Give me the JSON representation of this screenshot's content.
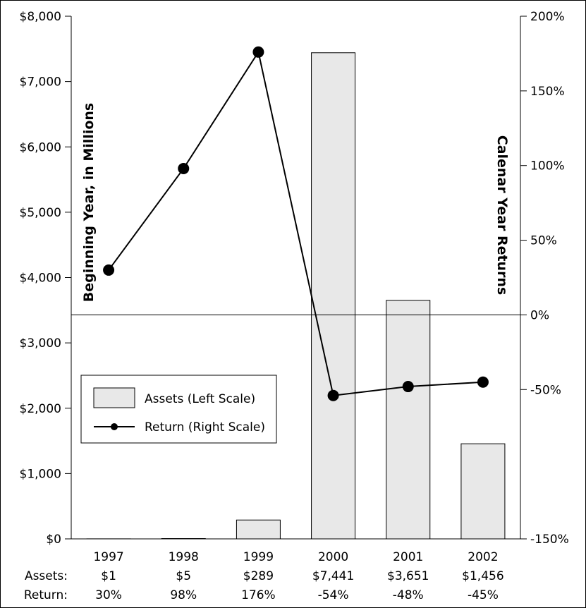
{
  "chart_data": {
    "type": "bar",
    "categories": [
      "1997",
      "1998",
      "1999",
      "2000",
      "2001",
      "2002"
    ],
    "series": [
      {
        "name": "Assets (Left Scale)",
        "type": "bar",
        "axis": "left",
        "values": [
          1,
          5,
          289,
          7441,
          3651,
          1456
        ],
        "color": "#e8e8e8"
      },
      {
        "name": "Return (Right Scale)",
        "type": "line",
        "axis": "right",
        "values": [
          30,
          98,
          176,
          -54,
          -48,
          -45
        ],
        "color": "#000000"
      }
    ],
    "ylabel": "Beginning Year, in Millions",
    "y2label": "Calenar Year Returns",
    "ylim": [
      0,
      8000
    ],
    "y2lim": [
      -150,
      200
    ],
    "yticks": [
      "$0",
      "$1,000",
      "$2,000",
      "$3,000",
      "$4,000",
      "$5,000",
      "$6,000",
      "$7,000",
      "$8,000"
    ],
    "y2ticks": [
      "-150%",
      "-50%",
      "0%",
      "50%",
      "100%",
      "150%",
      "200%"
    ],
    "y2tick_values": [
      -150,
      -50,
      0,
      50,
      100,
      150,
      200
    ],
    "table": {
      "row_labels": [
        "Assets:",
        "Return:"
      ],
      "assets": [
        "$1",
        "$5",
        "$289",
        "$7,441",
        "$3,651",
        "$1,456"
      ],
      "returns": [
        "30%",
        "98%",
        "176%",
        "-54%",
        "-48%",
        "-45%"
      ]
    },
    "legend_position": "lower-left",
    "grid": false
  }
}
